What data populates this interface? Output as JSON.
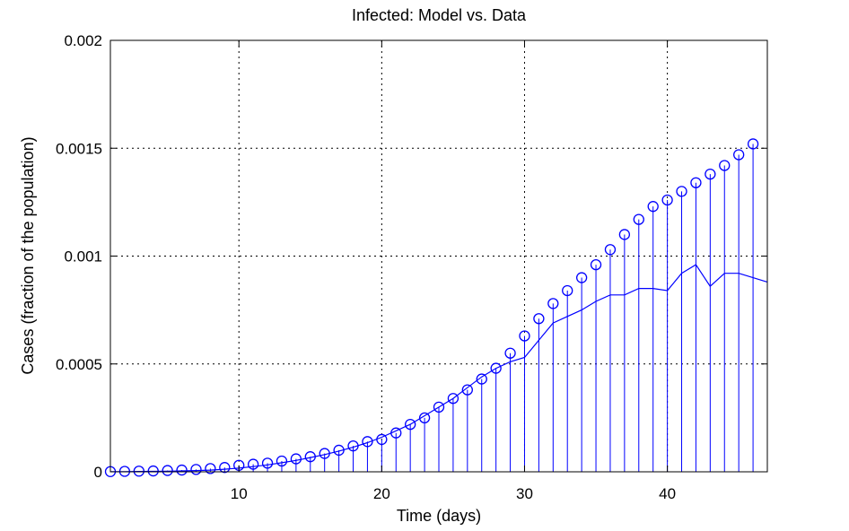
{
  "chart_data": {
    "type": "line",
    "title": "Infected: Model vs. Data",
    "xlabel": "Time (days)",
    "ylabel": "Cases (fraction of the population)",
    "xlim": [
      1,
      47
    ],
    "ylim": [
      0,
      0.002
    ],
    "x_ticks": [
      10,
      20,
      30,
      40
    ],
    "y_ticks": [
      0,
      0.0005,
      0.001,
      0.0015,
      0.002
    ],
    "x_tick_labels": [
      "10",
      "20",
      "30",
      "40"
    ],
    "y_tick_labels": [
      "0",
      "0.0005",
      "0.001",
      "0.0015",
      "0.002"
    ],
    "grid": true,
    "color": "#0000ff",
    "series": [
      {
        "style": "stem",
        "x": [
          1,
          2,
          3,
          4,
          5,
          6,
          7,
          8,
          9,
          10,
          11,
          12,
          13,
          14,
          15,
          16,
          17,
          18,
          19,
          20,
          21,
          22,
          23,
          24,
          25,
          26,
          27,
          28,
          29,
          30,
          31,
          32,
          33,
          34,
          35,
          36,
          37,
          38,
          39,
          40,
          41,
          42,
          43,
          44,
          45,
          46
        ],
        "values": [
          1e-06,
          2e-06,
          3e-06,
          4e-06,
          6e-06,
          8e-06,
          1.1e-05,
          1.5e-05,
          2e-05,
          3e-05,
          3.5e-05,
          4e-05,
          5e-05,
          6e-05,
          7e-05,
          8.5e-05,
          0.0001,
          0.00012,
          0.00014,
          0.00015,
          0.00018,
          0.00022,
          0.00025,
          0.0003,
          0.00034,
          0.00038,
          0.00043,
          0.00048,
          0.00055,
          0.00063,
          0.00071,
          0.00078,
          0.00084,
          0.0009,
          0.00096,
          0.00103,
          0.0011,
          0.00117,
          0.00123,
          0.00126,
          0.0013,
          0.00134,
          0.00138,
          0.00142,
          0.00147,
          0.00152
        ]
      },
      {
        "style": "line",
        "x": [
          1,
          2,
          3,
          4,
          5,
          6,
          7,
          8,
          9,
          10,
          11,
          12,
          13,
          14,
          15,
          16,
          17,
          18,
          19,
          20,
          21,
          22,
          23,
          24,
          25,
          26,
          27,
          28,
          29,
          30,
          31,
          32,
          33,
          34,
          35,
          36,
          37,
          38,
          39,
          40,
          41,
          42,
          43,
          44,
          45,
          46,
          47
        ],
        "values": [
          5e-07,
          1e-06,
          1.5e-06,
          2e-06,
          3e-06,
          4e-06,
          6e-06,
          8e-06,
          1.2e-05,
          1.7e-05,
          2.4e-05,
          3.2e-05,
          4.2e-05,
          5.3e-05,
          6.6e-05,
          8e-05,
          9.6e-05,
          0.000114,
          0.000135,
          0.00016,
          0.00019,
          0.00022,
          0.00026,
          0.0003,
          0.00034,
          0.00039,
          0.00044,
          0.00048,
          0.00051,
          0.00053,
          0.00061,
          0.00069,
          0.00072,
          0.00075,
          0.00079,
          0.00082,
          0.00082,
          0.00085,
          0.00085,
          0.00084,
          0.00092,
          0.00096,
          0.00086,
          0.00092,
          0.00092,
          0.0009,
          0.00088
        ]
      }
    ]
  }
}
